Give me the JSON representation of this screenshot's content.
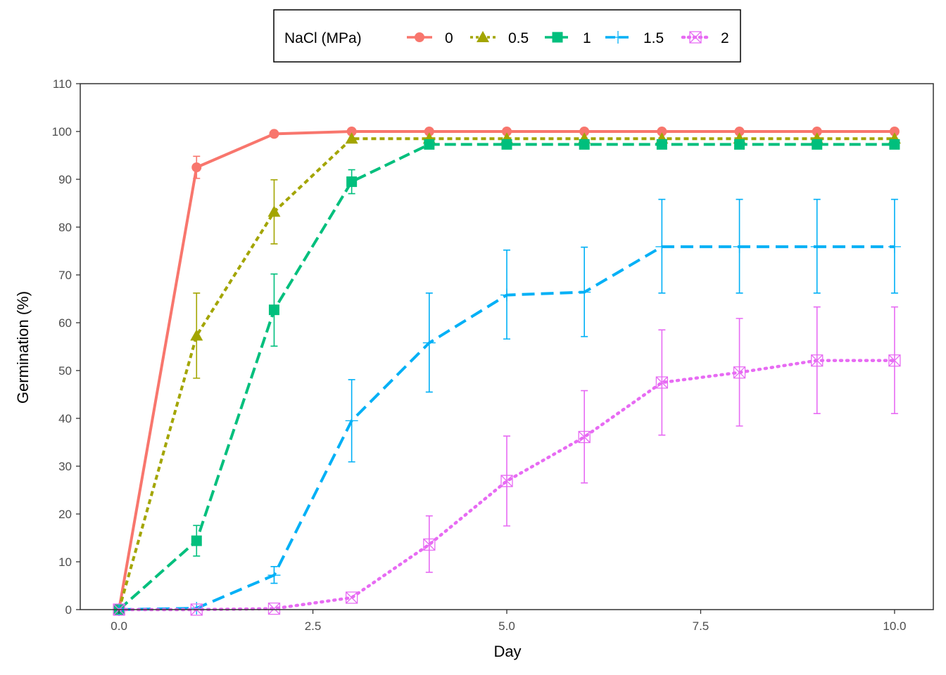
{
  "chart_data": {
    "type": "line",
    "xlabel": "Day",
    "ylabel": "Germination (%)",
    "xlim": [
      -0.5,
      10.5
    ],
    "ylim": [
      0,
      110
    ],
    "x_ticks": [
      "0.0",
      "2.5",
      "5.0",
      "7.5",
      "10.0"
    ],
    "y_ticks": [
      "0",
      "10",
      "20",
      "30",
      "40",
      "50",
      "60",
      "70",
      "80",
      "90",
      "100",
      "110"
    ],
    "grid": false,
    "legend": {
      "title": "NaCl (MPa)",
      "position": "top"
    },
    "x": [
      0,
      1,
      2,
      3,
      4,
      5,
      6,
      7,
      8,
      9,
      10
    ],
    "series": [
      {
        "name": "0",
        "color": "#F8766D",
        "marker": "circle",
        "dash": "solid",
        "values": [
          0,
          92.5,
          99.5,
          100,
          100,
          100,
          100,
          100,
          100,
          100,
          100
        ],
        "err_low": [
          null,
          90.2,
          null,
          null,
          null,
          null,
          null,
          null,
          null,
          null,
          null
        ],
        "err_high": [
          null,
          94.8,
          null,
          null,
          null,
          null,
          null,
          null,
          null,
          null,
          null
        ]
      },
      {
        "name": "0.5",
        "color": "#A3A500",
        "marker": "triangle",
        "dash": "short",
        "values": [
          0,
          57.3,
          83.2,
          98.5,
          98.5,
          98.5,
          98.5,
          98.5,
          98.5,
          98.5,
          98.5
        ],
        "err_low": [
          null,
          48.4,
          76.5,
          null,
          null,
          null,
          null,
          null,
          null,
          null,
          null
        ],
        "err_high": [
          null,
          66.2,
          89.9,
          null,
          null,
          null,
          null,
          null,
          null,
          null,
          null
        ]
      },
      {
        "name": "1",
        "color": "#00BF7D",
        "marker": "square",
        "dash": "long",
        "values": [
          0,
          14.4,
          62.7,
          89.5,
          97.3,
          97.3,
          97.3,
          97.3,
          97.3,
          97.3,
          97.3
        ],
        "err_low": [
          null,
          11.2,
          55.1,
          87.0,
          null,
          null,
          null,
          null,
          null,
          null,
          null
        ],
        "err_high": [
          null,
          17.6,
          70.2,
          92.0,
          null,
          null,
          null,
          null,
          null,
          null,
          null
        ]
      },
      {
        "name": "1.5",
        "color": "#00B0F6",
        "marker": "plus",
        "dash": "dash",
        "values": [
          0,
          0.3,
          7.2,
          39.5,
          55.8,
          65.8,
          66.4,
          75.9,
          75.9,
          75.9,
          75.9
        ],
        "err_low": [
          null,
          null,
          5.5,
          30.9,
          45.5,
          56.6,
          57.1,
          66.2,
          66.2,
          66.2,
          66.2
        ],
        "err_high": [
          null,
          null,
          9.0,
          48.1,
          66.2,
          75.2,
          75.8,
          85.8,
          85.8,
          85.8,
          85.8
        ]
      },
      {
        "name": "2",
        "color": "#E76BF3",
        "marker": "square-x",
        "dash": "dotted",
        "values": [
          0,
          0,
          0.2,
          2.5,
          13.6,
          26.9,
          36.1,
          47.5,
          49.6,
          52.1,
          52.1
        ],
        "err_low": [
          null,
          null,
          null,
          null,
          7.8,
          17.5,
          26.5,
          36.5,
          38.4,
          41.0,
          41.0
        ],
        "err_high": [
          null,
          null,
          null,
          null,
          19.6,
          36.3,
          45.8,
          58.5,
          60.9,
          63.3,
          63.3
        ]
      }
    ]
  }
}
